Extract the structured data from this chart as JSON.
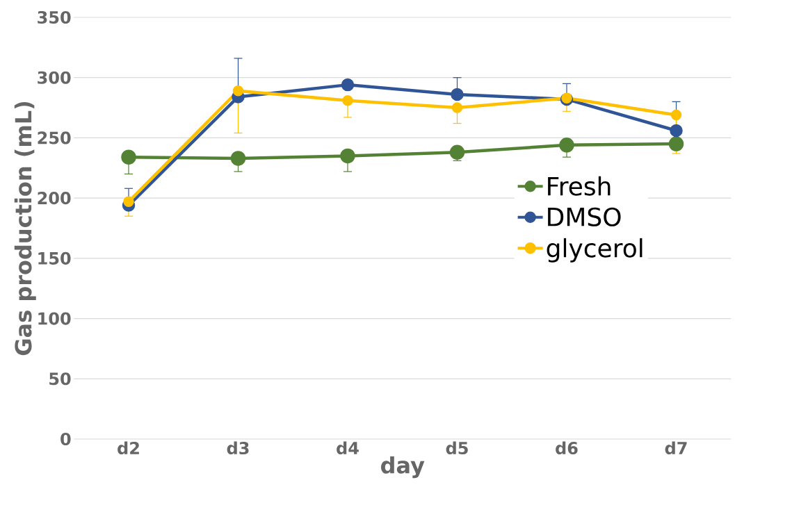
{
  "chart_data": {
    "type": "line",
    "xlabel": "day",
    "ylabel": "Gas production (mL)",
    "categories": [
      "d2",
      "d3",
      "d4",
      "d5",
      "d6",
      "d7"
    ],
    "series": [
      {
        "name": "Fresh",
        "color": "#548235",
        "values": [
          234,
          233,
          235,
          238,
          244,
          245
        ],
        "errors": [
          [
            220,
            234
          ],
          [
            222,
            233
          ],
          [
            222,
            235
          ],
          [
            231,
            238
          ],
          [
            234,
            244
          ],
          null
        ]
      },
      {
        "name": "DMSO",
        "color": "#2f5597",
        "values": [
          194,
          284,
          294,
          286,
          282,
          256
        ],
        "errors": [
          [
            194,
            208
          ],
          [
            284,
            316
          ],
          null,
          [
            286,
            300
          ],
          [
            282,
            295
          ],
          [
            256,
            280
          ]
        ]
      },
      {
        "name": "glycerol",
        "color": "#ffc000",
        "values": [
          197,
          289,
          281,
          275,
          283,
          269
        ],
        "errors": [
          [
            185,
            197
          ],
          [
            254,
            289
          ],
          [
            267,
            281
          ],
          [
            262,
            275
          ],
          [
            272,
            283
          ],
          [
            237,
            269
          ]
        ]
      }
    ],
    "ylim": [
      0,
      350
    ],
    "yticks": [
      0,
      50,
      100,
      150,
      200,
      250,
      300,
      350
    ],
    "grid": "y",
    "legend": "right",
    "marker": "circle",
    "line_style": "solid"
  }
}
